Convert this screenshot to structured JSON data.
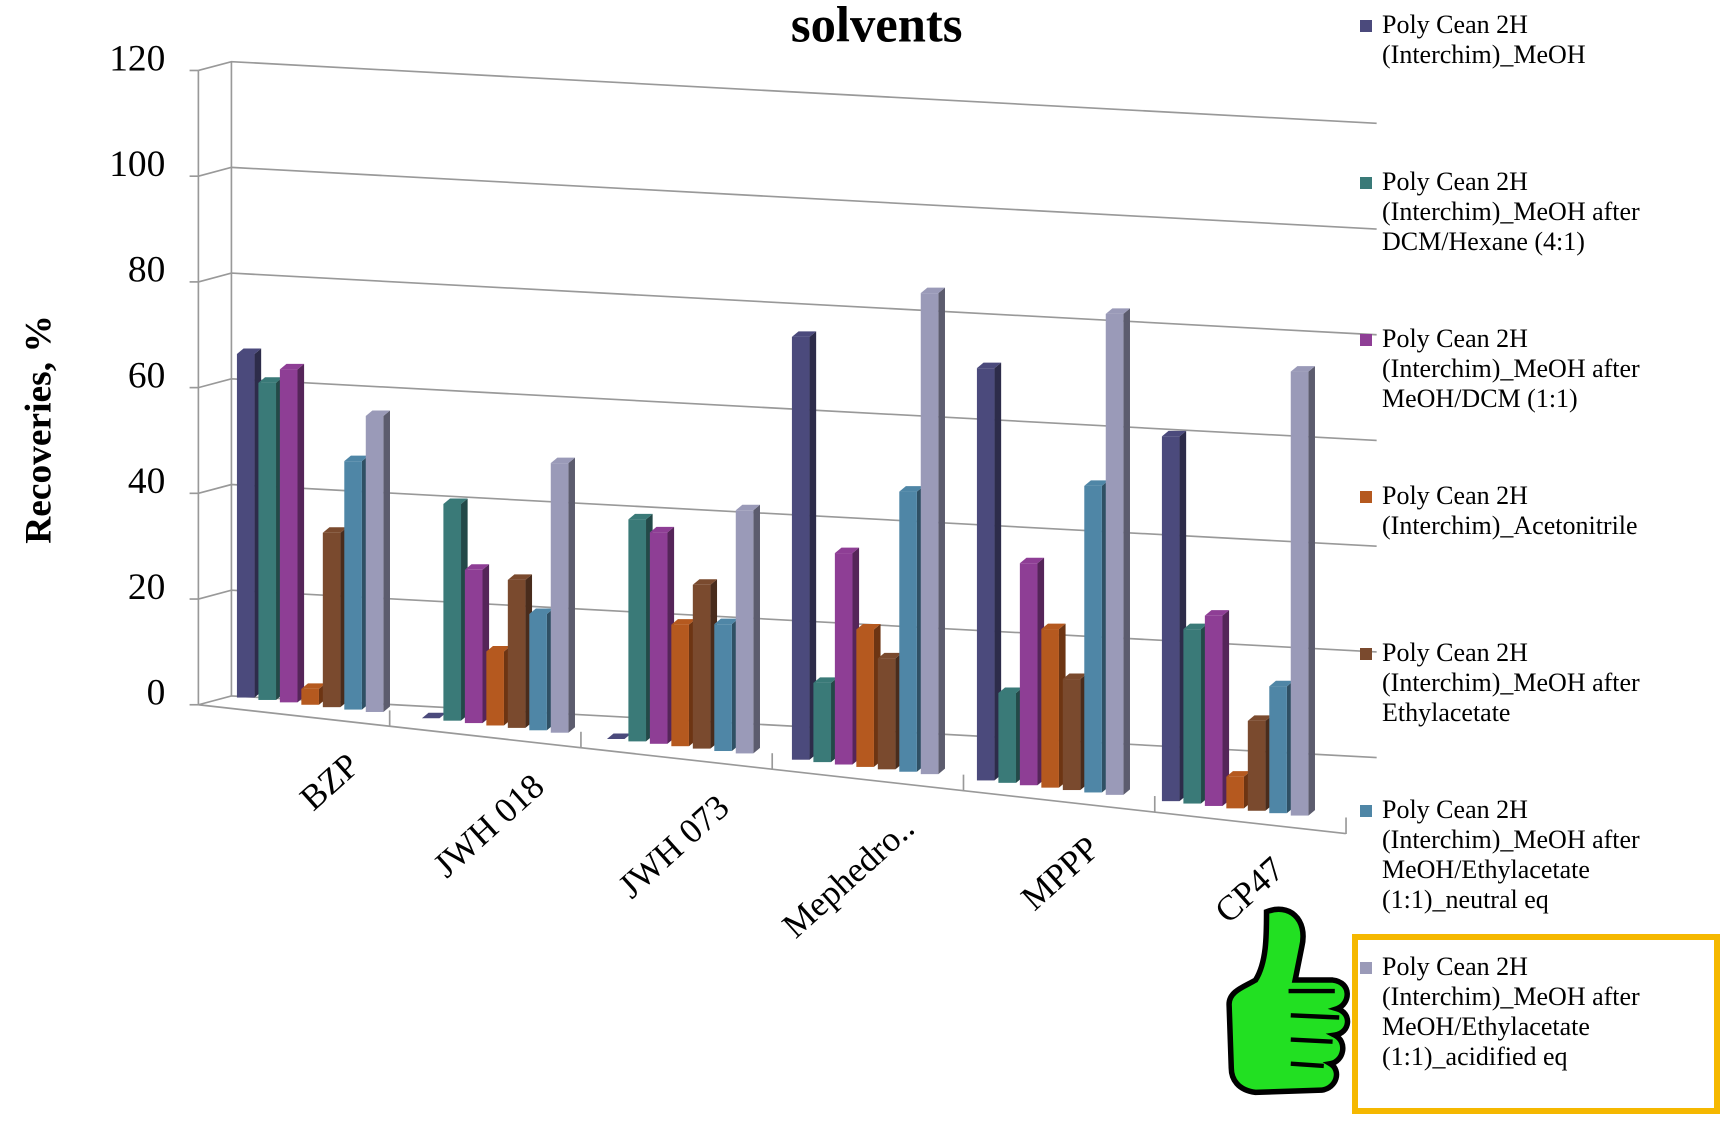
{
  "chart_data": {
    "type": "bar3d",
    "title": "solvents",
    "y_label": "Recoveries, %",
    "categories": [
      "BZP",
      "JWH 018",
      "JWH 073",
      "Mephedro..",
      "MPPP",
      "CP47"
    ],
    "ylim": [
      0,
      120
    ],
    "yticks": [
      0,
      20,
      40,
      60,
      80,
      100,
      120
    ],
    "grid": true,
    "series": [
      {
        "name": "Poly Cean 2H (Interchim)_MeOH",
        "color": "#4b4a7c",
        "values": [
          65,
          0,
          0,
          80,
          78,
          69
        ]
      },
      {
        "name": "Poly Cean 2H (Interchim)_MeOH after DCM/Hexane (4:1)",
        "color": "#3a7a78",
        "values": [
          60,
          41,
          42,
          15,
          17,
          33
        ]
      },
      {
        "name": "Poly Cean 2H (Interchim)_MeOH after MeOH/DCM (1:1)",
        "color": "#8e3e95",
        "values": [
          63,
          29,
          40,
          40,
          42,
          36
        ]
      },
      {
        "name": "Poly Cean 2H (Interchim)_Acetonitrile",
        "color": "#b5591f",
        "values": [
          3,
          14,
          23,
          26,
          30,
          6
        ]
      },
      {
        "name": "Poly Cean 2H (Interchim)_MeOH after Ethylacetate",
        "color": "#7a4a2e",
        "values": [
          33,
          28,
          31,
          21,
          21,
          17
        ]
      },
      {
        "name": "Poly Cean 2H (Interchim)_MeOH after MeOH/Ethylacetate (1:1)_neutral eq",
        "color": "#4f86a6",
        "values": [
          47,
          22,
          24,
          53,
          58,
          24
        ]
      },
      {
        "name": "Poly Cean 2H (Interchim)_MeOH after MeOH/Ethylacetate (1:1)_acidified eq",
        "color": "#9a9ab8",
        "values": [
          56,
          51,
          46,
          91,
          91,
          84
        ]
      }
    ]
  }
}
